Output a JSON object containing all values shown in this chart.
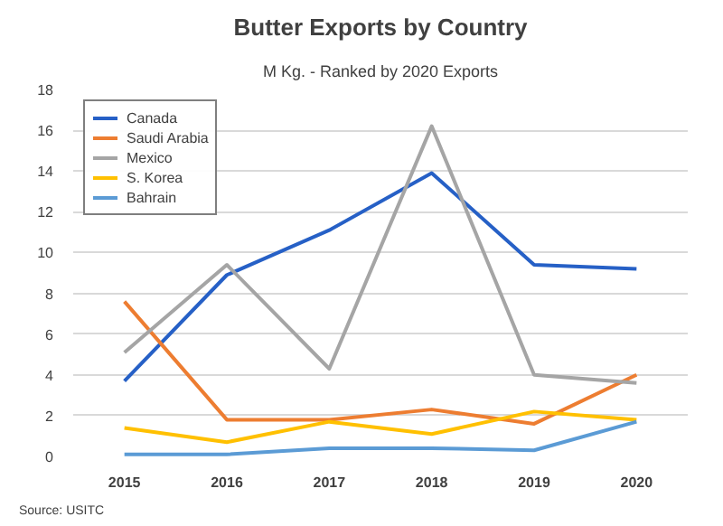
{
  "chart_data": {
    "type": "line",
    "title": "Butter Exports by Country",
    "subtitle": "M Kg. - Ranked by 2020 Exports",
    "categories": [
      "2015",
      "2016",
      "2017",
      "2018",
      "2019",
      "2020"
    ],
    "series": [
      {
        "name": "Canada",
        "color": "#2660c6",
        "values": [
          3.7,
          8.9,
          11.1,
          13.9,
          9.4,
          9.2
        ]
      },
      {
        "name": "Saudi Arabia",
        "color": "#ed7d31",
        "values": [
          7.6,
          1.8,
          1.8,
          2.3,
          1.6,
          4.0
        ]
      },
      {
        "name": "Mexico",
        "color": "#a5a5a5",
        "values": [
          5.1,
          9.4,
          4.3,
          16.2,
          4.0,
          3.6
        ]
      },
      {
        "name": "S. Korea",
        "color": "#ffc000",
        "values": [
          1.4,
          0.7,
          1.7,
          1.1,
          2.2,
          1.8
        ]
      },
      {
        "name": "Bahrain",
        "color": "#5b9bd5",
        "values": [
          0.1,
          0.1,
          0.4,
          0.4,
          0.3,
          1.7
        ]
      }
    ],
    "ylim": [
      0,
      18
    ],
    "yticks": [
      0,
      2,
      4,
      6,
      8,
      10,
      12,
      14,
      16,
      18
    ],
    "grid": "y",
    "legend": "top left",
    "annotations": [
      "Source: USITC"
    ]
  }
}
